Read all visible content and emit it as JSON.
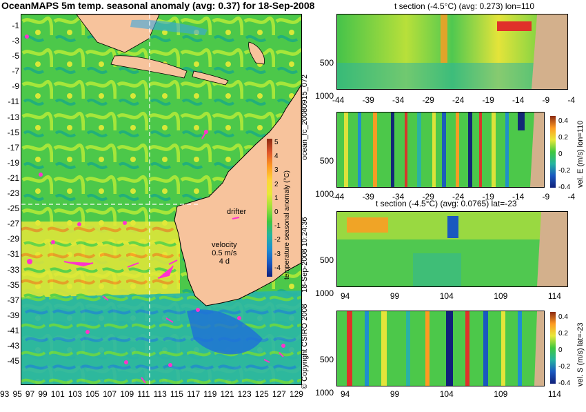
{
  "main_title": "OceanMAPS 5m temp. seasonal anomaly (avg: 0.37) for 18-Sep-2008",
  "map": {
    "lat_labels": [
      "-1",
      "-3",
      "-5",
      "-7",
      "-9",
      "-11",
      "-13",
      "-15",
      "-17",
      "-19",
      "-21",
      "-23",
      "-25",
      "-27",
      "-29",
      "-31",
      "-33",
      "-35",
      "-37",
      "-39",
      "-41",
      "-43",
      "-45"
    ],
    "lon_labels": [
      "93",
      "95",
      "97",
      "99",
      "101",
      "103",
      "105",
      "107",
      "109",
      "111",
      "113",
      "115",
      "117",
      "119",
      "121",
      "123",
      "125",
      "127",
      "129"
    ],
    "colorbar": {
      "label": "temperature seasonal anomaly (°C)",
      "ticks": [
        "5",
        "4",
        "3",
        "2",
        "1",
        "0",
        "-1",
        "-2",
        "-3",
        "-4"
      ]
    },
    "drifter_label": "drifter",
    "velocity_label": "velocity",
    "velocity_scale": "0.5 m/s",
    "velocity_time": "4 d",
    "colors": {
      "land": "#f7c39c",
      "drifter": "#ff33cc",
      "ocean_mid": "#33cc33"
    }
  },
  "panels": [
    {
      "title": "t section (-4.5°C) (avg: 0.273) lon=110",
      "x_ticks": [
        "-44",
        "-39",
        "-34",
        "-29",
        "-24",
        "-19",
        "-14",
        "-9",
        "-4"
      ],
      "y_ticks": [
        "500",
        "1000"
      ]
    },
    {
      "title": "",
      "x_ticks": [
        "-44",
        "-39",
        "-34",
        "-29",
        "-24",
        "-19",
        "-14",
        "-9",
        "-4"
      ],
      "y_ticks": [
        "500",
        "1000"
      ],
      "colorbar_label": "vel. E (m/s) lon=110",
      "colorbar_ticks": [
        "0.4",
        "0.2",
        "0",
        "-0.2",
        "-0.4"
      ]
    },
    {
      "title": "t section (-4.5°C) (avg: 0.0765) lat=-23",
      "x_ticks": [
        "94",
        "99",
        "104",
        "109",
        "114"
      ],
      "y_ticks": [
        "500",
        "1000"
      ]
    },
    {
      "title": "",
      "x_ticks": [
        "94",
        "99",
        "104",
        "109",
        "114"
      ],
      "y_ticks": [
        "500",
        "1000"
      ],
      "colorbar_label": "vel. S (m/s) lat=-23",
      "colorbar_ticks": [
        "0.4",
        "0.2",
        "0",
        "-0.2",
        "-0.4"
      ]
    }
  ],
  "side_labels": {
    "run_id": "ocean_fc_20080915_072",
    "timestamp": "18-Sep-2008 10:24:36",
    "copyright": "© Copyright CSIRO 2008"
  }
}
